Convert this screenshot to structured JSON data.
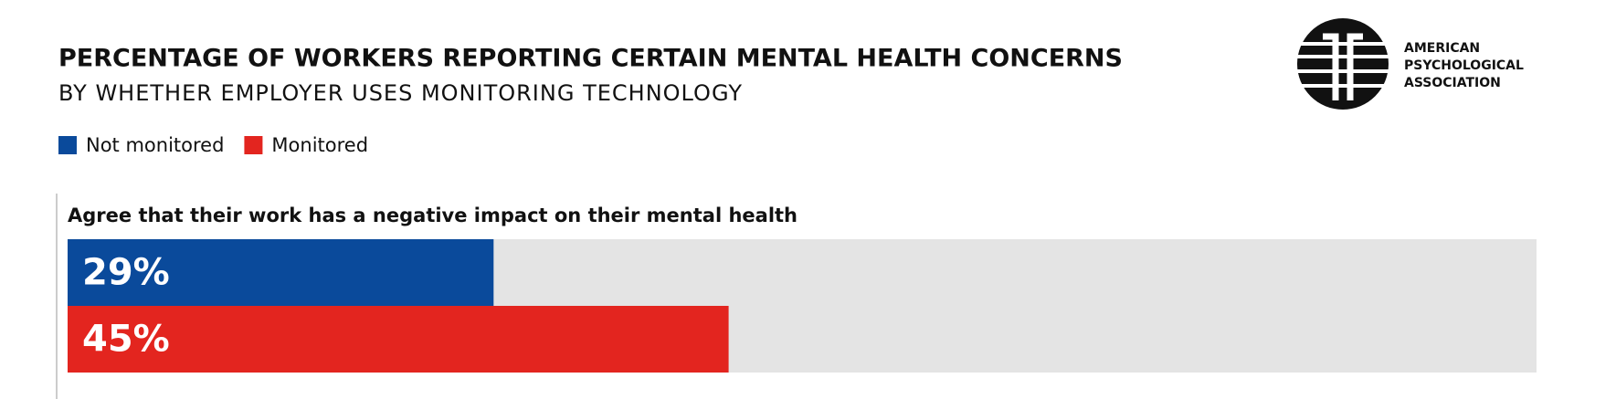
{
  "chart_data": {
    "type": "bar",
    "orientation": "horizontal",
    "title": "PERCENTAGE OF WORKERS REPORTING CERTAIN MENTAL HEALTH CONCERNS",
    "subtitle": "BY WHETHER EMPLOYER USES MONITORING TECHNOLOGY",
    "logo_text": [
      "AMERICAN",
      "PSYCHOLOGICAL",
      "ASSOCIATION"
    ],
    "categories": [
      "Agree that their work has a negative impact on their mental health"
    ],
    "series": [
      {
        "name": "Not monitored",
        "color": "#0a4a9b",
        "values": [
          29
        ],
        "value_labels": [
          "29%"
        ]
      },
      {
        "name": "Monitored",
        "color": "#e3251f",
        "values": [
          45
        ],
        "value_labels": [
          "45%"
        ]
      }
    ],
    "xlim": [
      0,
      100
    ],
    "track_color": "#e4e4e4"
  }
}
